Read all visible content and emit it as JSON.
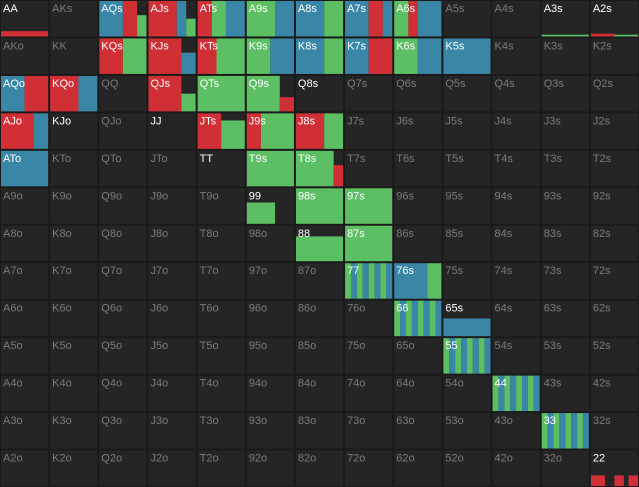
{
  "grid": {
    "rows": [
      [
        "AA",
        "AKs",
        "AQs",
        "AJs",
        "ATs",
        "A9s",
        "A8s",
        "A7s",
        "A6s",
        "A5s",
        "A4s",
        "A3s",
        "A2s"
      ],
      [
        "AKo",
        "KK",
        "KQs",
        "KJs",
        "KTs",
        "K9s",
        "K8s",
        "K7s",
        "K6s",
        "K5s",
        "K4s",
        "K3s",
        "K2s"
      ],
      [
        "AQo",
        "KQo",
        "QQ",
        "QJs",
        "QTs",
        "Q9s",
        "Q8s",
        "Q7s",
        "Q6s",
        "Q5s",
        "Q4s",
        "Q3s",
        "Q2s"
      ],
      [
        "AJo",
        "KJo",
        "QJo",
        "JJ",
        "JTs",
        "J9s",
        "J8s",
        "J7s",
        "J6s",
        "J5s",
        "J4s",
        "J3s",
        "J2s"
      ],
      [
        "ATo",
        "KTo",
        "QTo",
        "JTo",
        "TT",
        "T9s",
        "T8s",
        "T7s",
        "T6s",
        "T5s",
        "T4s",
        "T3s",
        "T2s"
      ],
      [
        "A9o",
        "K9o",
        "Q9o",
        "J9o",
        "T9o",
        "99",
        "98s",
        "97s",
        "96s",
        "95s",
        "94s",
        "93s",
        "92s"
      ],
      [
        "A8o",
        "K8o",
        "Q8o",
        "J8o",
        "T8o",
        "98o",
        "88",
        "87s",
        "86s",
        "85s",
        "84s",
        "83s",
        "82s"
      ],
      [
        "A7o",
        "K7o",
        "Q7o",
        "J7o",
        "T7o",
        "97o",
        "87o",
        "77",
        "76s",
        "75s",
        "74s",
        "73s",
        "72s"
      ],
      [
        "A6o",
        "K6o",
        "Q6o",
        "J6o",
        "T6o",
        "96o",
        "86o",
        "76o",
        "66",
        "65s",
        "64s",
        "63s",
        "62s"
      ],
      [
        "A5o",
        "K5o",
        "Q5o",
        "J5o",
        "T5o",
        "95o",
        "85o",
        "75o",
        "65o",
        "55",
        "54s",
        "53s",
        "52s"
      ],
      [
        "A4o",
        "K4o",
        "Q4o",
        "J4o",
        "T4o",
        "94o",
        "84o",
        "74o",
        "64o",
        "54o",
        "44",
        "43s",
        "42s"
      ],
      [
        "A3o",
        "K3o",
        "Q3o",
        "J3o",
        "T3o",
        "93o",
        "83o",
        "73o",
        "63o",
        "53o",
        "43o",
        "33",
        "32s"
      ],
      [
        "A2o",
        "K2o",
        "Q2o",
        "J2o",
        "T2o",
        "92o",
        "82o",
        "72o",
        "62o",
        "52o",
        "42o",
        "32o",
        "22"
      ]
    ]
  }
}
